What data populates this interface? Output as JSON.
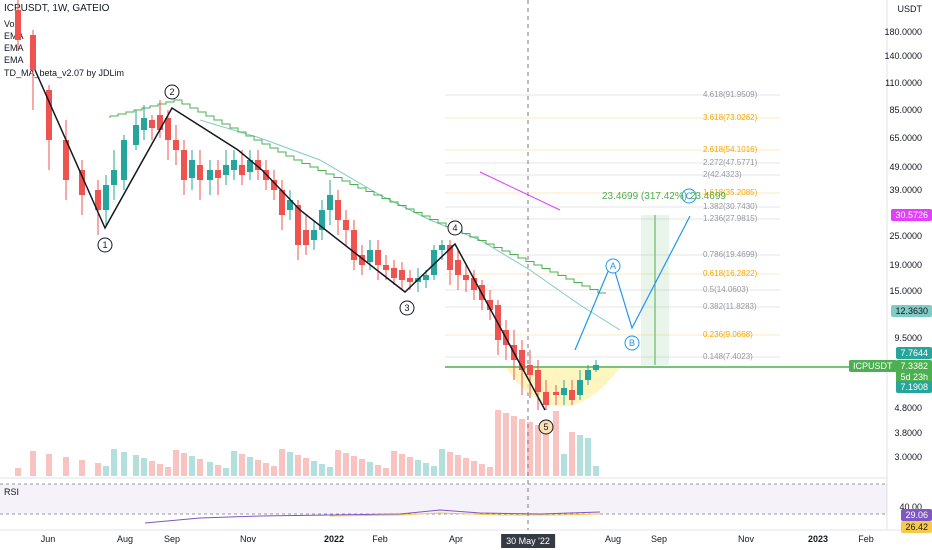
{
  "header": {
    "symbol_line": "ICPUSDT, 1W, GATEIO",
    "indicators": [
      "Vol",
      "EMA",
      "EMA",
      "EMA",
      "TD_MA_beta_v2.07 by JDLim"
    ]
  },
  "price_axis": {
    "currency": "USDT",
    "labels": [
      "180.0000",
      "140.0000",
      "110.0000",
      "85.0000",
      "65.0000",
      "49.0000",
      "39.0000",
      "25.0000",
      "19.0000",
      "15.0000",
      "9.5000",
      "4.8000",
      "3.8000",
      "3.0000"
    ]
  },
  "price_badges": {
    "target": "30.5726",
    "ema": "12.3630",
    "high": "7.7644",
    "close": "7.3382",
    "countdown": "5d 23h",
    "low": "7.1908",
    "symbol_tag": "ICPUSDT"
  },
  "rsi": {
    "label": "RSI",
    "axis_top": "40.00",
    "value1": "29.06",
    "value2": "26.42"
  },
  "time_axis": {
    "labels": [
      "Jun",
      "Aug",
      "Sep",
      "Nov",
      "2022",
      "Feb",
      "Apr",
      "Aug",
      "Sep",
      "Nov",
      "2023",
      "Feb"
    ],
    "crosshair": "30 May '22"
  },
  "fib_levels": [
    {
      "text": "4.618(91.9509)",
      "color": "#9598a1"
    },
    {
      "text": "3.618(73.0262)",
      "color": "#f7a600"
    },
    {
      "text": "2.618(54.1016)",
      "color": "#f7a600"
    },
    {
      "text": "2.272(47.5771)",
      "color": "#9598a1"
    },
    {
      "text": "2(42.4323)",
      "color": "#9598a1"
    },
    {
      "text": "1.618(35.2085)",
      "color": "#f7a600"
    },
    {
      "text": "1.382(30.7430)",
      "color": "#9598a1"
    },
    {
      "text": "1.236(27.9815)",
      "color": "#9598a1"
    },
    {
      "text": "0.786(19.4699)",
      "color": "#9598a1"
    },
    {
      "text": "0.618(16.2822)",
      "color": "#f7a600"
    },
    {
      "text": "0.5(14.0603)",
      "color": "#9598a1"
    },
    {
      "text": "0.382(11.8283)",
      "color": "#9598a1"
    },
    {
      "text": "0.236(9.0668)",
      "color": "#f7a600"
    },
    {
      "text": "0.148(7.4023)",
      "color": "#9598a1"
    }
  ],
  "measure": "23.4699 (317.42%) 23.4699",
  "waves": [
    "1",
    "2",
    "3",
    "4",
    "5"
  ],
  "abc": [
    "A",
    "B",
    "C"
  ],
  "colors": {
    "up": "#26a69a",
    "down": "#ef5350",
    "td_up": "#4caf50",
    "td_down": "#e53935"
  }
}
